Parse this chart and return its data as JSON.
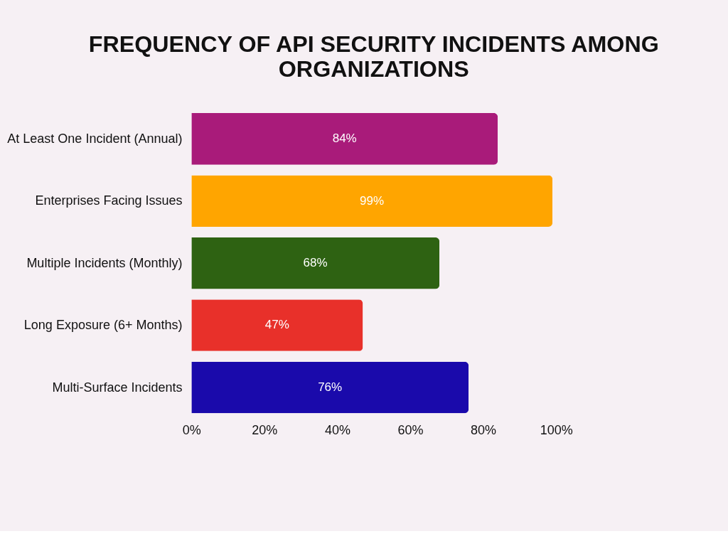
{
  "chart_data": {
    "type": "bar",
    "orientation": "horizontal",
    "title": "FREQUENCY OF API SECURITY INCIDENTS AMONG ORGANIZATIONS",
    "categories": [
      "At Least One Incident (Annual)",
      "Enterprises Facing Issues",
      "Multiple Incidents (Monthly)",
      "Long Exposure (6+ Months)",
      "Multi-Surface Incidents"
    ],
    "values": [
      84,
      99,
      68,
      47,
      76
    ],
    "colors": [
      "#a91b7a",
      "#ffa500",
      "#2e6212",
      "#e8302a",
      "#1a0aab"
    ],
    "value_labels": [
      "84%",
      "99%",
      "68%",
      "47%",
      "76%"
    ],
    "xlim": [
      0,
      100
    ],
    "xticks": [
      {
        "value": 0,
        "label": "0%"
      },
      {
        "value": 20,
        "label": "20%"
      },
      {
        "value": 40,
        "label": "40%"
      },
      {
        "value": 60,
        "label": "60%"
      },
      {
        "value": 80,
        "label": "80%"
      },
      {
        "value": 100,
        "label": "100%"
      }
    ],
    "grid": false,
    "legend": false
  }
}
